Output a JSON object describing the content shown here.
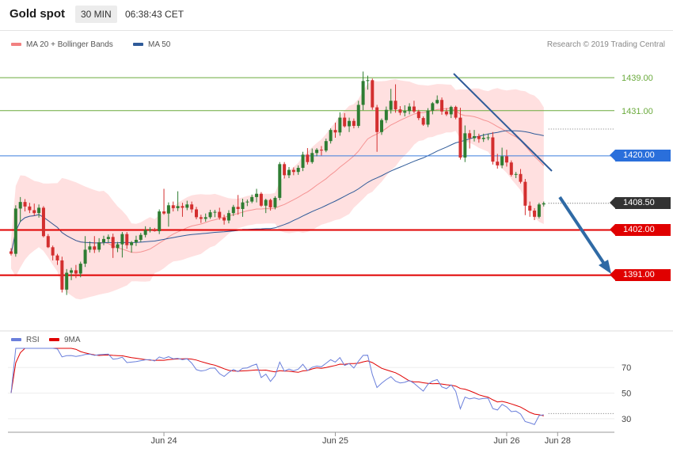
{
  "header": {
    "title": "Gold spot",
    "timeframe": "30 MIN",
    "clock": "06:38:43 CET"
  },
  "legend": {
    "bb_label": "MA 20 + Bollinger Bands",
    "ma50_label": "MA 50",
    "credit": "Research © 2019 Trading Central"
  },
  "rsi_legend": {
    "rsi_label": "RSI",
    "ma_label": "9MA"
  },
  "colors": {
    "bull": "#2e7d32",
    "bear": "#d32f2f",
    "band": "#ffd6d6",
    "ma20": "#f28080",
    "ma50": "#2f5b99",
    "green_line": "#6aaa3c",
    "blue_line": "#3b7ddd",
    "red_line": "#e00000",
    "last": "#333333",
    "rsi": "#6a7fdb",
    "rsi_ma": "#e00000"
  },
  "price_levels": [
    {
      "label": "1439.00",
      "value": 1439,
      "style": "green"
    },
    {
      "label": "1431.00",
      "value": 1431,
      "style": "green"
    },
    {
      "label": "1420.00",
      "value": 1420,
      "style": "blue"
    },
    {
      "label": "1408.50",
      "value": 1408.5,
      "style": "last"
    },
    {
      "label": "1402.00",
      "value": 1402,
      "style": "red"
    },
    {
      "label": "1391.00",
      "value": 1391,
      "style": "red"
    }
  ],
  "chart_data": [
    {
      "type": "candlestick",
      "title": "Gold spot",
      "timeframe": "30 MIN",
      "ylim": [
        1379,
        1445
      ],
      "x_labels": [
        {
          "label": "Jun 24",
          "index": 33
        },
        {
          "label": "Jun 25",
          "index": 70
        },
        {
          "label": "Jun 26",
          "index": 107
        },
        {
          "label": "Jun 28",
          "index": 118
        }
      ],
      "ohlc": [
        [
          1396.8,
          1397.6,
          1395.8,
          1396.2
        ],
        [
          1396.2,
          1408,
          1395.5,
          1407.2
        ],
        [
          1407.2,
          1410,
          1404,
          1408.8
        ],
        [
          1408.8,
          1409.5,
          1406.5,
          1407.7
        ],
        [
          1407.7,
          1408.6,
          1406.1,
          1406.8
        ],
        [
          1406.8,
          1408.4,
          1405.5,
          1406.1
        ],
        [
          1406.1,
          1408.2,
          1405,
          1407.4
        ],
        [
          1407.4,
          1407.8,
          1400.2,
          1400.5
        ],
        [
          1400.5,
          1401,
          1397.6,
          1397.8
        ],
        [
          1397.8,
          1398.2,
          1394.6,
          1395.8
        ],
        [
          1395.8,
          1396.2,
          1393.5,
          1394.6
        ],
        [
          1394.6,
          1395.5,
          1386.8,
          1387.5
        ],
        [
          1387.5,
          1392.5,
          1386.2,
          1391.6
        ],
        [
          1391.6,
          1392.8,
          1389.8,
          1392.2
        ],
        [
          1392.2,
          1393.5,
          1390.3,
          1391.4
        ],
        [
          1391.4,
          1394.3,
          1390.5,
          1393.8
        ],
        [
          1393.8,
          1400.5,
          1393,
          1397.2
        ],
        [
          1397.2,
          1399.2,
          1396.5,
          1398
        ],
        [
          1398,
          1400.5,
          1396.4,
          1397.2
        ],
        [
          1397.2,
          1400,
          1396.6,
          1399
        ],
        [
          1399,
          1400.6,
          1398.3,
          1399.8
        ],
        [
          1399.8,
          1400.9,
          1398.9,
          1400.3
        ],
        [
          1400.3,
          1401.1,
          1395.2,
          1397.6
        ],
        [
          1397.6,
          1399.1,
          1396.6,
          1398.5
        ],
        [
          1398.5,
          1401.5,
          1395.3,
          1401
        ],
        [
          1401,
          1401.5,
          1397.4,
          1398.3
        ],
        [
          1398.3,
          1399.3,
          1396.5,
          1399
        ],
        [
          1399,
          1400.6,
          1398.1,
          1399.6
        ],
        [
          1399.6,
          1401.3,
          1399.1,
          1400.8
        ],
        [
          1400.8,
          1402.9,
          1400.2,
          1402
        ],
        [
          1402,
          1402.7,
          1401.4,
          1402.2
        ],
        [
          1402.2,
          1402.5,
          1401.6,
          1401.7
        ],
        [
          1401.7,
          1407,
          1401,
          1406.5
        ],
        [
          1406.5,
          1412,
          1405.7,
          1406
        ],
        [
          1406,
          1408.7,
          1402.8,
          1408
        ],
        [
          1408,
          1408.9,
          1406.5,
          1407.3
        ],
        [
          1407.3,
          1411.4,
          1406.6,
          1407.8
        ],
        [
          1407.8,
          1408.6,
          1405.2,
          1407.4
        ],
        [
          1407.4,
          1409.1,
          1406.8,
          1408.2
        ],
        [
          1408.2,
          1408.9,
          1406.2,
          1407
        ],
        [
          1407,
          1407.6,
          1404.6,
          1405.1
        ],
        [
          1405.1,
          1405.7,
          1403.7,
          1404.7
        ],
        [
          1404.7,
          1406,
          1404,
          1405.1
        ],
        [
          1405.1,
          1406.9,
          1404.7,
          1406.3
        ],
        [
          1406.3,
          1406.9,
          1405.1,
          1406.4
        ],
        [
          1406.4,
          1407.4,
          1404.5,
          1405
        ],
        [
          1405,
          1405.7,
          1403.3,
          1404.3
        ],
        [
          1404.3,
          1406.8,
          1403.6,
          1406.1
        ],
        [
          1406.1,
          1408.1,
          1405.4,
          1407.6
        ],
        [
          1407.6,
          1410.5,
          1405.7,
          1407.1
        ],
        [
          1407.1,
          1409.6,
          1405.2,
          1408.7
        ],
        [
          1408.7,
          1409.4,
          1407.8,
          1408.9
        ],
        [
          1408.9,
          1410.6,
          1408.5,
          1410
        ],
        [
          1410,
          1412,
          1408.7,
          1410.8
        ],
        [
          1410.8,
          1411.2,
          1407.6,
          1407.9
        ],
        [
          1407.9,
          1409.6,
          1406.1,
          1409.3
        ],
        [
          1409.3,
          1409.6,
          1406.7,
          1407.5
        ],
        [
          1407.5,
          1410.2,
          1407,
          1409.8
        ],
        [
          1409.8,
          1418.5,
          1409.2,
          1418
        ],
        [
          1418,
          1418.5,
          1414.5,
          1415.3
        ],
        [
          1415.3,
          1417.3,
          1414.6,
          1416.6
        ],
        [
          1416.6,
          1417.2,
          1415.3,
          1416.1
        ],
        [
          1416.1,
          1417.7,
          1415.4,
          1417.1
        ],
        [
          1417.1,
          1421,
          1416.3,
          1420.3
        ],
        [
          1420.3,
          1421.9,
          1417.9,
          1418.5
        ],
        [
          1418.5,
          1421.8,
          1418.1,
          1420.7
        ],
        [
          1420.7,
          1421.9,
          1419.9,
          1421.5
        ],
        [
          1421.5,
          1422.4,
          1420.1,
          1421.3
        ],
        [
          1421.3,
          1424.2,
          1420.9,
          1423.6
        ],
        [
          1423.6,
          1426.7,
          1423,
          1426.3
        ],
        [
          1426.3,
          1428.1,
          1424.4,
          1425.7
        ],
        [
          1425.7,
          1430.6,
          1424.9,
          1429.3
        ],
        [
          1429.3,
          1430.4,
          1426.9,
          1427.2
        ],
        [
          1427.2,
          1429.3,
          1425.8,
          1428.5
        ],
        [
          1428.5,
          1429.1,
          1426.7,
          1427.3
        ],
        [
          1427.3,
          1433.4,
          1426.8,
          1432.4
        ],
        [
          1432.4,
          1440.5,
          1431.1,
          1438.2
        ],
        [
          1438.2,
          1439.5,
          1436.1,
          1438.4
        ],
        [
          1438.4,
          1438.8,
          1431.2,
          1431.8
        ],
        [
          1431.8,
          1432.4,
          1421,
          1425.8
        ],
        [
          1425.8,
          1429.1,
          1425.1,
          1428.7
        ],
        [
          1428.7,
          1432,
          1428,
          1431.2
        ],
        [
          1431.2,
          1436.3,
          1430.3,
          1433.4
        ],
        [
          1433.4,
          1437.4,
          1430.5,
          1431.3
        ],
        [
          1431.3,
          1432.1,
          1429.9,
          1430.5
        ],
        [
          1430.5,
          1432.3,
          1429.6,
          1430.9
        ],
        [
          1430.9,
          1432.8,
          1430.1,
          1432
        ],
        [
          1432,
          1433.4,
          1430.4,
          1430.8
        ],
        [
          1430.8,
          1431.2,
          1428.7,
          1429.2
        ],
        [
          1429.2,
          1429.6,
          1427.3,
          1427.6
        ],
        [
          1427.6,
          1431.6,
          1427,
          1431
        ],
        [
          1431,
          1433.1,
          1430.1,
          1432.8
        ],
        [
          1432.8,
          1434.7,
          1432.6,
          1433.6
        ],
        [
          1433.6,
          1434.2,
          1430,
          1430.8
        ],
        [
          1430.8,
          1431.6,
          1429.7,
          1430.1
        ],
        [
          1430.1,
          1432.2,
          1429.2,
          1431.9
        ],
        [
          1431.9,
          1432.2,
          1428.9,
          1429.3
        ],
        [
          1429.3,
          1431.7,
          1419.1,
          1419.6
        ],
        [
          1419.6,
          1427.4,
          1418.5,
          1425.5
        ],
        [
          1425.5,
          1426.3,
          1421.8,
          1424.3
        ],
        [
          1424.3,
          1426.3,
          1423.5,
          1424.8
        ],
        [
          1424.8,
          1425.4,
          1423.2,
          1424.1
        ],
        [
          1424.1,
          1425.4,
          1423.4,
          1424.4
        ],
        [
          1424.4,
          1425.4,
          1423.8,
          1424.5
        ],
        [
          1424.5,
          1425.8,
          1417.9,
          1418.6
        ],
        [
          1418.6,
          1420.5,
          1416.9,
          1417.7
        ],
        [
          1417.7,
          1422,
          1417,
          1419.9
        ],
        [
          1419.9,
          1421.5,
          1417.4,
          1418.4
        ],
        [
          1418.4,
          1418.9,
          1415,
          1415.4
        ],
        [
          1415.4,
          1416.1,
          1414.6,
          1415.6
        ],
        [
          1415.6,
          1416.8,
          1413.3,
          1413.7
        ],
        [
          1413.7,
          1414.4,
          1405.6,
          1407.9
        ],
        [
          1407.9,
          1408.9,
          1405.2,
          1406.7
        ],
        [
          1406.7,
          1407.3,
          1404.4,
          1405.2
        ],
        [
          1405.2,
          1408.6,
          1404.8,
          1408.2
        ],
        [
          1408.2,
          1408.9,
          1407.7,
          1408.5
        ]
      ]
    },
    {
      "type": "line",
      "title": "RSI",
      "series_names": [
        "RSI",
        "9MA"
      ],
      "yticks": [
        30,
        50,
        70
      ],
      "ylim": [
        20,
        85
      ],
      "x_labels": [
        "Jun 24",
        "Jun 25",
        "Jun 26",
        "Jun 28"
      ]
    }
  ]
}
